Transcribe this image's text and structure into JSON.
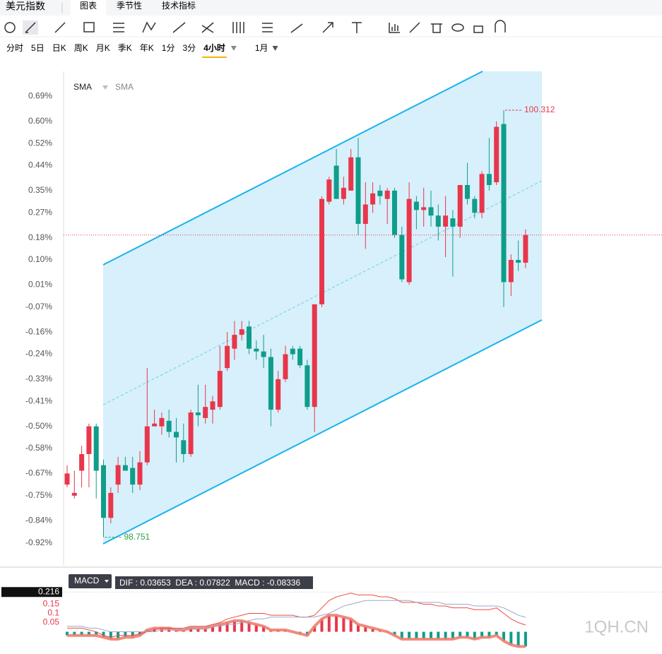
{
  "header": {
    "tabs": [
      "美元指数",
      "图表",
      "季节性",
      "技术指标"
    ],
    "periods": [
      "分时",
      "5日",
      "日K",
      "周K",
      "月K",
      "季K",
      "年K",
      "1分",
      "3分",
      "4小时",
      "1月"
    ],
    "active_period": "4小时"
  },
  "chart_data": [
    {
      "type": "candlestick",
      "legend": [
        "SMA",
        "SMA"
      ],
      "open": [
        -0.71,
        -0.75,
        -0.66,
        -0.6,
        -0.5,
        -0.64,
        -0.83,
        -0.71,
        -0.64,
        -0.65,
        -0.71,
        -0.63,
        -0.5,
        -0.5,
        -0.48,
        -0.52,
        -0.55,
        -0.6,
        -0.45,
        -0.47,
        -0.44,
        -0.43,
        -0.29,
        -0.22,
        -0.17,
        -0.14,
        -0.22,
        -0.23,
        -0.25,
        -0.44,
        -0.33,
        -0.22,
        -0.22,
        -0.28,
        -0.43,
        -0.06,
        0.31,
        0.44,
        0.32,
        0.35,
        0.47,
        0.23,
        0.3,
        0.35,
        0.32,
        0.35,
        0.19,
        0.02,
        0.31,
        0.28,
        0.29,
        0.26,
        0.22,
        0.25,
        0.22,
        0.37,
        0.32,
        0.27,
        0.41,
        0.38,
        0.59,
        0.02,
        0.1,
        0.09
      ],
      "high": [
        -0.64,
        -0.66,
        -0.57,
        -0.49,
        -0.49,
        -0.62,
        -0.72,
        -0.61,
        -0.61,
        -0.61,
        -0.59,
        -0.29,
        -0.44,
        -0.45,
        -0.44,
        -0.47,
        -0.49,
        -0.44,
        -0.35,
        -0.35,
        -0.39,
        -0.21,
        -0.16,
        -0.12,
        -0.12,
        -0.12,
        -0.19,
        -0.17,
        -0.22,
        -0.3,
        -0.21,
        -0.21,
        -0.21,
        -0.26,
        -0.06,
        0.33,
        0.4,
        0.5,
        0.4,
        0.5,
        0.54,
        0.38,
        0.38,
        0.37,
        0.36,
        0.36,
        0.22,
        0.38,
        0.33,
        0.36,
        0.35,
        0.3,
        0.33,
        0.28,
        0.37,
        0.45,
        0.33,
        0.42,
        0.54,
        0.6,
        0.64,
        0.12,
        0.17,
        0.21
      ],
      "low": [
        -0.72,
        -0.76,
        -0.72,
        -0.72,
        -0.76,
        -0.9,
        -0.85,
        -0.74,
        -0.66,
        -0.74,
        -0.73,
        -0.64,
        -0.5,
        -0.53,
        -0.54,
        -0.63,
        -0.63,
        -0.61,
        -0.5,
        -0.49,
        -0.49,
        -0.44,
        -0.3,
        -0.26,
        -0.19,
        -0.24,
        -0.26,
        -0.29,
        -0.5,
        -0.45,
        -0.34,
        -0.26,
        -0.29,
        -0.44,
        -0.52,
        -0.07,
        0.3,
        0.32,
        0.3,
        0.35,
        0.19,
        0.14,
        0.27,
        0.3,
        0.23,
        0.18,
        0.02,
        0.01,
        0.21,
        0.22,
        0.22,
        0.17,
        0.11,
        0.04,
        0.18,
        0.3,
        0.25,
        0.25,
        0.35,
        0.37,
        -0.07,
        -0.03,
        0.06,
        0.07
      ],
      "close": [
        -0.67,
        -0.74,
        -0.6,
        -0.5,
        -0.66,
        -0.83,
        -0.74,
        -0.64,
        -0.66,
        -0.71,
        -0.63,
        -0.5,
        -0.49,
        -0.47,
        -0.52,
        -0.54,
        -0.6,
        -0.45,
        -0.46,
        -0.43,
        -0.41,
        -0.3,
        -0.21,
        -0.17,
        -0.15,
        -0.22,
        -0.23,
        -0.25,
        -0.44,
        -0.33,
        -0.24,
        -0.24,
        -0.28,
        -0.43,
        -0.06,
        0.32,
        0.39,
        0.32,
        0.36,
        0.47,
        0.23,
        0.3,
        0.34,
        0.33,
        0.35,
        0.19,
        0.03,
        0.32,
        0.28,
        0.29,
        0.26,
        0.22,
        0.26,
        0.22,
        0.37,
        0.32,
        0.27,
        0.41,
        0.37,
        0.58,
        0.02,
        0.1,
        0.09,
        0.19
      ],
      "up_color": "#e8364b",
      "down_color": "#0f9d8a",
      "ylim": [
        -1.0,
        0.78
      ],
      "yticks": [
        {
          "value": 0.69,
          "label": "0.69%"
        },
        {
          "value": 0.6,
          "label": "0.60%"
        },
        {
          "value": 0.52,
          "label": "0.52%"
        },
        {
          "value": 0.44,
          "label": "0.44%"
        },
        {
          "value": 0.35,
          "label": "0.35%"
        },
        {
          "value": 0.27,
          "label": "0.27%"
        },
        {
          "value": 0.18,
          "label": "0.18%"
        },
        {
          "value": 0.1,
          "label": "0.10%"
        },
        {
          "value": 0.01,
          "label": "0.01%"
        },
        {
          "value": -0.07,
          "label": "-0.07%"
        },
        {
          "value": -0.16,
          "label": "-0.16%"
        },
        {
          "value": -0.24,
          "label": "-0.24%"
        },
        {
          "value": -0.33,
          "label": "-0.33%"
        },
        {
          "value": -0.41,
          "label": "-0.41%"
        },
        {
          "value": -0.5,
          "label": "-0.50%"
        },
        {
          "value": -0.58,
          "label": "-0.58%"
        },
        {
          "value": -0.67,
          "label": "-0.67%"
        },
        {
          "value": -0.75,
          "label": "-0.75%"
        },
        {
          "value": -0.84,
          "label": "-0.84%"
        },
        {
          "value": -0.92,
          "label": "-0.92%"
        }
      ],
      "high_label": 100.312,
      "low_label": 98.751
    },
    {
      "type": "macd",
      "label": "MACD",
      "readout": "DIF : 0.03653  DEA : 0.07822  MACD : -0.08336",
      "values": [
        -0.02,
        -0.02,
        -0.02,
        -0.02,
        -0.02,
        -0.03,
        -0.04,
        -0.04,
        -0.03,
        -0.03,
        -0.02,
        0.01,
        0.02,
        0.02,
        0.02,
        0.01,
        0.01,
        0.02,
        0.02,
        0.02,
        0.03,
        0.04,
        0.05,
        0.06,
        0.06,
        0.05,
        0.04,
        0.03,
        0.01,
        0.01,
        0.01,
        0.0,
        -0.01,
        -0.02,
        0.03,
        0.07,
        0.09,
        0.09,
        0.08,
        0.07,
        0.04,
        0.03,
        0.02,
        0.01,
        0.0,
        -0.02,
        -0.04,
        -0.04,
        -0.04,
        -0.04,
        -0.04,
        -0.04,
        -0.04,
        -0.04,
        -0.03,
        -0.03,
        -0.04,
        -0.03,
        -0.03,
        -0.02,
        -0.05,
        -0.07,
        -0.08,
        -0.08
      ],
      "series": [
        {
          "name": "DIF",
          "color": "#f04a3e",
          "values": [
            0.02,
            0.02,
            0.02,
            0.01,
            0.0,
            -0.02,
            -0.03,
            -0.02,
            -0.02,
            -0.02,
            -0.01,
            0.0,
            0.01,
            0.02,
            0.02,
            0.02,
            0.02,
            0.03,
            0.03,
            0.03,
            0.04,
            0.05,
            0.07,
            0.08,
            0.09,
            0.1,
            0.1,
            0.1,
            0.09,
            0.09,
            0.09,
            0.09,
            0.08,
            0.08,
            0.09,
            0.13,
            0.17,
            0.19,
            0.2,
            0.21,
            0.2,
            0.2,
            0.2,
            0.19,
            0.19,
            0.18,
            0.16,
            0.16,
            0.16,
            0.15,
            0.15,
            0.14,
            0.14,
            0.13,
            0.13,
            0.13,
            0.12,
            0.12,
            0.12,
            0.13,
            0.1,
            0.07,
            0.05,
            0.03653
          ]
        },
        {
          "name": "DEA",
          "color": "#9aa7c9",
          "values": [
            0.03,
            0.03,
            0.03,
            0.02,
            0.02,
            0.01,
            0.0,
            0.0,
            0.0,
            0.0,
            0.0,
            0.0,
            0.0,
            0.01,
            0.01,
            0.01,
            0.02,
            0.02,
            0.02,
            0.02,
            0.03,
            0.03,
            0.04,
            0.04,
            0.05,
            0.06,
            0.07,
            0.07,
            0.08,
            0.08,
            0.08,
            0.08,
            0.08,
            0.08,
            0.08,
            0.09,
            0.1,
            0.12,
            0.14,
            0.15,
            0.16,
            0.17,
            0.17,
            0.17,
            0.17,
            0.17,
            0.17,
            0.17,
            0.16,
            0.16,
            0.16,
            0.16,
            0.15,
            0.15,
            0.15,
            0.15,
            0.14,
            0.14,
            0.14,
            0.14,
            0.13,
            0.11,
            0.09,
            0.07822
          ]
        }
      ],
      "ylim": [
        -0.09,
        0.24
      ],
      "yticks": [
        0.216,
        0.15,
        0.1,
        0.05
      ]
    }
  ],
  "watermark": "1QH.CN"
}
